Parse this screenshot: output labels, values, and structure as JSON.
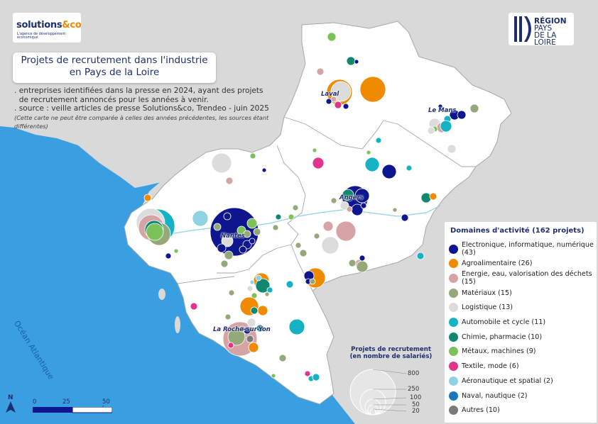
{
  "title_line1": "Projets de recrutement dans l'industrie",
  "title_line2": "en Pays de la Loire",
  "desc_line1": ". entreprises identifiées dans la presse en 2024, ayant des projets",
  "desc_line2": "  de recrutement annoncés pour les années à venir.",
  "desc_line3": ". source : veille articles de presse Solutions&co, Trendeo - juin 2025",
  "desc_note": "(Cette carte ne peut être comparée à celles des années précédentes, les sources étant différentes)",
  "logo_left_main": "solutions",
  "logo_left_amp": "&co",
  "logo_left_sub": "L'agence de développement économique",
  "logo_right_line1": "RÉGION",
  "logo_right_line2": "PAYS",
  "logo_right_line3": "DE LA LOIRE",
  "ocean_label": "Océan Atlantique",
  "cities": {
    "laval": "Laval",
    "le_mans": "Le Mans",
    "angers": "Angers",
    "nantes": "Nantes",
    "la_roche": "La Roche-sur-Yon"
  },
  "legend": {
    "title": "Domaines d'activité (162 projets)",
    "items": [
      {
        "label": "Electronique, informatique, numérique (43)",
        "color": "#0d168f"
      },
      {
        "label": "Agroalimentaire (26)",
        "color": "#f08a00"
      },
      {
        "label": "Energie, eau, valorisation des déchets (15)",
        "color": "#d7a4a6"
      },
      {
        "label": "Matériaux (15)",
        "color": "#94a87a"
      },
      {
        "label": "Logistique (13)",
        "color": "#dcdcdc"
      },
      {
        "label": "Automobile et cycle (11)",
        "color": "#15b2c4"
      },
      {
        "label": "Chimie, pharmacie (10)",
        "color": "#12876f"
      },
      {
        "label": "Métaux, machines (9)",
        "color": "#7bc259"
      },
      {
        "label": "Textile, mode (6)",
        "color": "#e0348f"
      },
      {
        "label": "Aéronautique et spatial (2)",
        "color": "#8fd2e3"
      },
      {
        "label": "Naval, nautique (2)",
        "color": "#1878bb"
      },
      {
        "label": "Autres (10)",
        "color": "#7a7a7a"
      }
    ]
  },
  "size_legend": {
    "title_line1": "Projets de recrutement",
    "title_line2": "(en nombre de salariés)",
    "values": [
      "800",
      "250",
      "100",
      "50",
      "20"
    ]
  },
  "scale": {
    "labels": [
      "0",
      "25",
      "50 km"
    ]
  },
  "north_label": "N"
}
